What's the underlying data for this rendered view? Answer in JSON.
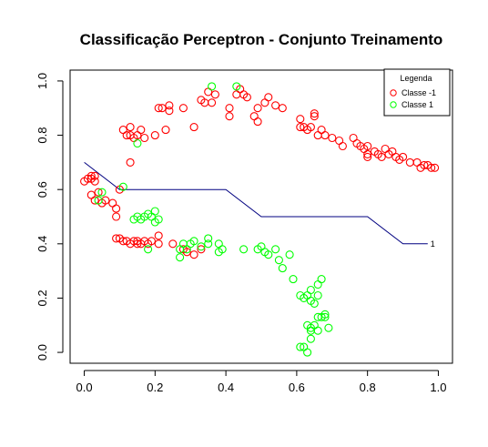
{
  "chart_data": {
    "type": "scatter",
    "title": "Classificação Perceptron - Conjunto Treinamento",
    "xlabel": "",
    "ylabel": "",
    "xlim": [
      -0.04,
      1.04
    ],
    "ylim": [
      -0.04,
      1.04
    ],
    "xticks": [
      "0.0",
      "0.2",
      "0.4",
      "0.6",
      "0.8",
      "1.0"
    ],
    "yticks": [
      "0.0",
      "0.2",
      "0.4",
      "0.6",
      "0.8",
      "1.0"
    ],
    "grid": false,
    "legend": {
      "title": "Legenda",
      "placement": "top-right",
      "entries": [
        {
          "label": "Classe -1",
          "color": "#ff0000"
        },
        {
          "label": "Classe 1",
          "color": "#00ff00"
        }
      ]
    },
    "series": [
      {
        "name": "Classe -1",
        "color": "#ff0000",
        "points": [
          [
            0.0,
            0.63
          ],
          [
            0.01,
            0.64
          ],
          [
            0.02,
            0.65
          ],
          [
            0.02,
            0.64
          ],
          [
            0.03,
            0.65
          ],
          [
            0.03,
            0.63
          ],
          [
            0.02,
            0.58
          ],
          [
            0.03,
            0.56
          ],
          [
            0.05,
            0.55
          ],
          [
            0.06,
            0.56
          ],
          [
            0.04,
            0.59
          ],
          [
            0.08,
            0.55
          ],
          [
            0.09,
            0.53
          ],
          [
            0.09,
            0.5
          ],
          [
            0.1,
            0.6
          ],
          [
            0.11,
            0.82
          ],
          [
            0.12,
            0.8
          ],
          [
            0.13,
            0.83
          ],
          [
            0.13,
            0.8
          ],
          [
            0.14,
            0.79
          ],
          [
            0.15,
            0.8
          ],
          [
            0.16,
            0.82
          ],
          [
            0.17,
            0.79
          ],
          [
            0.13,
            0.7
          ],
          [
            0.2,
            0.8
          ],
          [
            0.21,
            0.9
          ],
          [
            0.22,
            0.9
          ],
          [
            0.23,
            0.82
          ],
          [
            0.24,
            0.89
          ],
          [
            0.24,
            0.91
          ],
          [
            0.28,
            0.9
          ],
          [
            0.31,
            0.83
          ],
          [
            0.33,
            0.93
          ],
          [
            0.34,
            0.92
          ],
          [
            0.36,
            0.92
          ],
          [
            0.35,
            0.96
          ],
          [
            0.37,
            0.95
          ],
          [
            0.41,
            0.9
          ],
          [
            0.41,
            0.87
          ],
          [
            0.43,
            0.95
          ],
          [
            0.44,
            0.97
          ],
          [
            0.45,
            0.95
          ],
          [
            0.46,
            0.94
          ],
          [
            0.48,
            0.87
          ],
          [
            0.49,
            0.9
          ],
          [
            0.49,
            0.85
          ],
          [
            0.51,
            0.92
          ],
          [
            0.52,
            0.94
          ],
          [
            0.54,
            0.91
          ],
          [
            0.56,
            0.9
          ],
          [
            0.61,
            0.86
          ],
          [
            0.61,
            0.83
          ],
          [
            0.62,
            0.83
          ],
          [
            0.63,
            0.82
          ],
          [
            0.64,
            0.83
          ],
          [
            0.65,
            0.87
          ],
          [
            0.65,
            0.88
          ],
          [
            0.66,
            0.8
          ],
          [
            0.67,
            0.82
          ],
          [
            0.68,
            0.8
          ],
          [
            0.7,
            0.79
          ],
          [
            0.72,
            0.78
          ],
          [
            0.73,
            0.76
          ],
          [
            0.76,
            0.79
          ],
          [
            0.77,
            0.77
          ],
          [
            0.78,
            0.76
          ],
          [
            0.79,
            0.75
          ],
          [
            0.8,
            0.73
          ],
          [
            0.8,
            0.76
          ],
          [
            0.8,
            0.72
          ],
          [
            0.82,
            0.74
          ],
          [
            0.83,
            0.73
          ],
          [
            0.84,
            0.72
          ],
          [
            0.85,
            0.75
          ],
          [
            0.86,
            0.73
          ],
          [
            0.87,
            0.74
          ],
          [
            0.88,
            0.72
          ],
          [
            0.89,
            0.71
          ],
          [
            0.9,
            0.72
          ],
          [
            0.92,
            0.7
          ],
          [
            0.94,
            0.7
          ],
          [
            0.95,
            0.68
          ],
          [
            0.96,
            0.69
          ],
          [
            0.97,
            0.69
          ],
          [
            0.98,
            0.68
          ],
          [
            0.99,
            0.68
          ],
          [
            0.09,
            0.42
          ],
          [
            0.1,
            0.42
          ],
          [
            0.11,
            0.41
          ],
          [
            0.12,
            0.41
          ],
          [
            0.13,
            0.4
          ],
          [
            0.14,
            0.41
          ],
          [
            0.15,
            0.41
          ],
          [
            0.15,
            0.4
          ],
          [
            0.16,
            0.4
          ],
          [
            0.17,
            0.41
          ],
          [
            0.18,
            0.4
          ],
          [
            0.19,
            0.41
          ],
          [
            0.21,
            0.43
          ],
          [
            0.21,
            0.4
          ],
          [
            0.25,
            0.4
          ],
          [
            0.28,
            0.38
          ],
          [
            0.29,
            0.37
          ],
          [
            0.31,
            0.36
          ],
          [
            0.33,
            0.38
          ]
        ]
      },
      {
        "name": "Classe 1",
        "color": "#00ff00",
        "points": [
          [
            0.04,
            0.56
          ],
          [
            0.05,
            0.59
          ],
          [
            0.11,
            0.61
          ],
          [
            0.14,
            0.49
          ],
          [
            0.15,
            0.5
          ],
          [
            0.15,
            0.77
          ],
          [
            0.16,
            0.49
          ],
          [
            0.17,
            0.5
          ],
          [
            0.18,
            0.51
          ],
          [
            0.19,
            0.5
          ],
          [
            0.2,
            0.48
          ],
          [
            0.2,
            0.52
          ],
          [
            0.21,
            0.49
          ],
          [
            0.18,
            0.38
          ],
          [
            0.27,
            0.38
          ],
          [
            0.27,
            0.35
          ],
          [
            0.28,
            0.4
          ],
          [
            0.29,
            0.38
          ],
          [
            0.3,
            0.4
          ],
          [
            0.31,
            0.41
          ],
          [
            0.33,
            0.39
          ],
          [
            0.35,
            0.4
          ],
          [
            0.35,
            0.42
          ],
          [
            0.36,
            0.98
          ],
          [
            0.38,
            0.4
          ],
          [
            0.38,
            0.37
          ],
          [
            0.39,
            0.38
          ],
          [
            0.43,
            0.98
          ],
          [
            0.45,
            0.38
          ],
          [
            0.49,
            0.38
          ],
          [
            0.5,
            0.39
          ],
          [
            0.51,
            0.37
          ],
          [
            0.52,
            0.36
          ],
          [
            0.54,
            0.38
          ],
          [
            0.55,
            0.34
          ],
          [
            0.56,
            0.31
          ],
          [
            0.58,
            0.36
          ],
          [
            0.59,
            0.27
          ],
          [
            0.61,
            0.21
          ],
          [
            0.62,
            0.2
          ],
          [
            0.63,
            0.21
          ],
          [
            0.64,
            0.23
          ],
          [
            0.64,
            0.19
          ],
          [
            0.65,
            0.18
          ],
          [
            0.66,
            0.21
          ],
          [
            0.66,
            0.25
          ],
          [
            0.67,
            0.27
          ],
          [
            0.68,
            0.14
          ],
          [
            0.68,
            0.13
          ],
          [
            0.66,
            0.13
          ],
          [
            0.65,
            0.1
          ],
          [
            0.64,
            0.08
          ],
          [
            0.64,
            0.05
          ],
          [
            0.63,
            0.1
          ],
          [
            0.62,
            0.02
          ],
          [
            0.61,
            0.02
          ],
          [
            0.63,
            0.0
          ],
          [
            0.64,
            0.09
          ],
          [
            0.66,
            0.08
          ],
          [
            0.67,
            0.13
          ],
          [
            0.69,
            0.09
          ]
        ]
      }
    ],
    "decision_line": {
      "points": [
        [
          0.0,
          0.7
        ],
        [
          0.1,
          0.6
        ],
        [
          0.2,
          0.6
        ],
        [
          0.3,
          0.6
        ],
        [
          0.4,
          0.6
        ],
        [
          0.5,
          0.5
        ],
        [
          0.6,
          0.5
        ],
        [
          0.7,
          0.5
        ],
        [
          0.8,
          0.5
        ],
        [
          0.9,
          0.4
        ],
        [
          0.97,
          0.4
        ]
      ],
      "color": "#000080",
      "label": "1"
    }
  }
}
